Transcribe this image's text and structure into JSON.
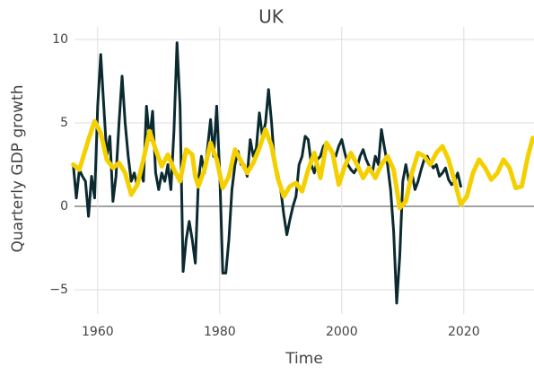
{
  "chart_data": {
    "type": "line",
    "title": "UK",
    "x_label": "Time",
    "y_label": "Quarterly GDP growth",
    "xlim": [
      1956.2,
      2031.5
    ],
    "ylim": [
      -6.45,
      10.75
    ],
    "xticks": [
      1960,
      1980,
      2000,
      2020
    ],
    "yticks": [
      {
        "value": -5,
        "label": "−5"
      },
      0,
      5,
      10
    ],
    "grid": true,
    "series": [
      {
        "color": "#0b2a2f",
        "x": [
          1956,
          1956.5,
          1957,
          1957.5,
          1958,
          1958.5,
          1959,
          1959.5,
          1960,
          1960.5,
          1961,
          1961.5,
          1962,
          1962.5,
          1963,
          1963.5,
          1964,
          1964.5,
          1965,
          1965.5,
          1966,
          1966.5,
          1967,
          1967.5,
          1968,
          1968.5,
          1969,
          1969.5,
          1970,
          1970.5,
          1971,
          1971.5,
          1972,
          1972.5,
          1973,
          1973.5,
          1974,
          1974.5,
          1975,
          1975.5,
          1976,
          1976.5,
          1977,
          1977.5,
          1978,
          1978.5,
          1979,
          1979.5,
          1980,
          1980.5,
          1981,
          1981.5,
          1982,
          1982.5,
          1983,
          1983.5,
          1984,
          1984.5,
          1985,
          1985.5,
          1986,
          1986.5,
          1987,
          1987.5,
          1988,
          1988.5,
          1989,
          1989.5,
          1990,
          1990.5,
          1991,
          1991.5,
          1992,
          1992.5,
          1993,
          1993.5,
          1994,
          1994.5,
          1995,
          1995.5,
          1996,
          1996.5,
          1997,
          1997.5,
          1998,
          1998.5,
          1999,
          1999.5,
          2000,
          2000.5,
          2001,
          2001.5,
          2002,
          2002.5,
          2003,
          2003.5,
          2004,
          2004.5,
          2005,
          2005.5,
          2006,
          2006.5,
          2007,
          2007.5,
          2008,
          2008.5,
          2009,
          2009.5,
          2010,
          2010.5,
          2011,
          2011.5,
          2012,
          2012.5,
          2013,
          2013.5,
          2014,
          2014.5,
          2015,
          2015.5,
          2016,
          2016.5,
          2017,
          2017.5,
          2018,
          2018.5,
          2019,
          2019.5
        ],
        "values": [
          2.5,
          0.5,
          2.2,
          1.8,
          1.5,
          -0.6,
          1.8,
          0.5,
          6,
          9.1,
          6,
          3,
          4.2,
          0.3,
          1.8,
          5,
          7.8,
          5,
          3,
          1.5,
          2,
          1.2,
          2.2,
          1.5,
          6,
          4,
          5.7,
          2,
          1,
          2,
          1.5,
          2.5,
          1,
          4.5,
          9.8,
          6,
          -3.9,
          -2,
          -0.9,
          -2,
          -3.4,
          1.5,
          3,
          2,
          3.5,
          5.2,
          3,
          6,
          2,
          -4,
          -4,
          -2,
          1,
          2.5,
          3.3,
          2.5,
          2.5,
          1.8,
          4,
          3,
          3.5,
          5.6,
          4.2,
          5,
          7,
          5,
          2.5,
          2,
          1,
          -0.5,
          -1.7,
          -0.8,
          0,
          0.6,
          2.5,
          3,
          4.2,
          4,
          2.5,
          2,
          2.8,
          3,
          3.6,
          3.8,
          3.5,
          3.1,
          3,
          3.6,
          4,
          3.2,
          2.5,
          2.2,
          2,
          2.3,
          3,
          3.4,
          2.8,
          2.4,
          2,
          3,
          2.5,
          4.6,
          3.5,
          2.5,
          1,
          -1.5,
          -5.8,
          -3,
          1.5,
          2.5,
          1.5,
          2,
          1,
          1.5,
          2.2,
          2.8,
          3,
          2.6,
          2.3,
          2.5,
          1.8,
          2,
          2.3,
          1.6,
          1.3,
          1.5,
          2,
          1.2
        ]
      },
      {
        "color": "#f5d000",
        "x": [
          1956,
          1957,
          1958.5,
          1959.5,
          1960.5,
          1961.5,
          1962.5,
          1963.5,
          1964.5,
          1965.5,
          1966.5,
          1967.5,
          1968.5,
          1969.5,
          1970.5,
          1971.5,
          1972.5,
          1973.5,
          1974.5,
          1975.5,
          1976,
          1976.5,
          1977.5,
          1978.5,
          1979.5,
          1980.5,
          1981.5,
          1982.5,
          1983.5,
          1984.5,
          1985.5,
          1986.5,
          1987.5,
          1988.5,
          1989.5,
          1990.5,
          1991.5,
          1992.5,
          1993.5,
          1994.5,
          1995.5,
          1996.5,
          1997.5,
          1998.5,
          1999.5,
          2000.5,
          2001.5,
          2002.5,
          2003.5,
          2004.5,
          2005.5,
          2006.5,
          2007.5,
          2008.5,
          2009.5,
          2010.5,
          2011.5,
          2012.5,
          2013.5,
          2014.5,
          2015.5,
          2016.5,
          2017.5,
          2018.5,
          2019.5,
          2020.5,
          2021.5,
          2022.5,
          2023.5,
          2024.5,
          2025.5,
          2026.5,
          2027.5,
          2028.5,
          2029.5,
          2030.5,
          2031.3
        ],
        "values": [
          2.5,
          2.2,
          4,
          5.1,
          4.4,
          2.8,
          2.3,
          2.6,
          2,
          0.7,
          1.3,
          2.8,
          4.5,
          3.4,
          2.4,
          3.1,
          2.2,
          1.5,
          3.4,
          3.1,
          1.8,
          1.2,
          2.2,
          3.8,
          2.8,
          1.1,
          1.8,
          3.4,
          2.7,
          2,
          2.6,
          3.5,
          4.6,
          3.6,
          1.7,
          0.6,
          1.2,
          1.4,
          0.9,
          2.2,
          3.2,
          1.7,
          3.8,
          3.2,
          1.3,
          2.4,
          3.2,
          2.5,
          1.7,
          2.3,
          1.7,
          2.5,
          3,
          2.2,
          -0.1,
          0.3,
          2,
          3.2,
          3,
          2.5,
          3.2,
          3.6,
          2.8,
          1.5,
          0.1,
          0.6,
          2,
          2.8,
          2.3,
          1.6,
          2,
          2.8,
          2.3,
          1.1,
          1.2,
          3,
          4.1
        ]
      }
    ]
  }
}
